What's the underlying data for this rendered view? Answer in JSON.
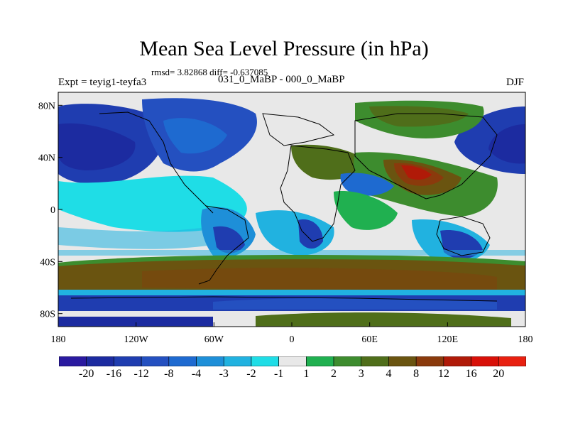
{
  "title": "Mean Sea Level Pressure (in hPa)",
  "stats": "rmsd= 3.82868 diff= -0.637085",
  "expt_label": "Expt = teyig1-teyfa3",
  "subtitle": "031_0_MaBP - 000_0_MaBP",
  "season": "DJF",
  "lon_ticks": [
    "180",
    "120W",
    "60W",
    "0",
    "60E",
    "120E",
    "180"
  ],
  "lat_ticks": [
    "80N",
    "40N",
    "0",
    "40S",
    "80S"
  ],
  "colorbar": {
    "labels": [
      "-20",
      "-16",
      "-12",
      "-8",
      "-4",
      "-3",
      "-2",
      "-1",
      "1",
      "2",
      "3",
      "4",
      "8",
      "12",
      "16",
      "20"
    ],
    "colors": [
      "#2a1aa0",
      "#1c2ba0",
      "#1f3db0",
      "#2450c0",
      "#1e6ad0",
      "#1e8fd8",
      "#21b2e0",
      "#1fdde6",
      "#e8e8e8",
      "#20b050",
      "#3d8c2e",
      "#4f6e1a",
      "#6a5410",
      "#8a3a0c",
      "#b01a08",
      "#d81008",
      "#e82010"
    ]
  }
}
